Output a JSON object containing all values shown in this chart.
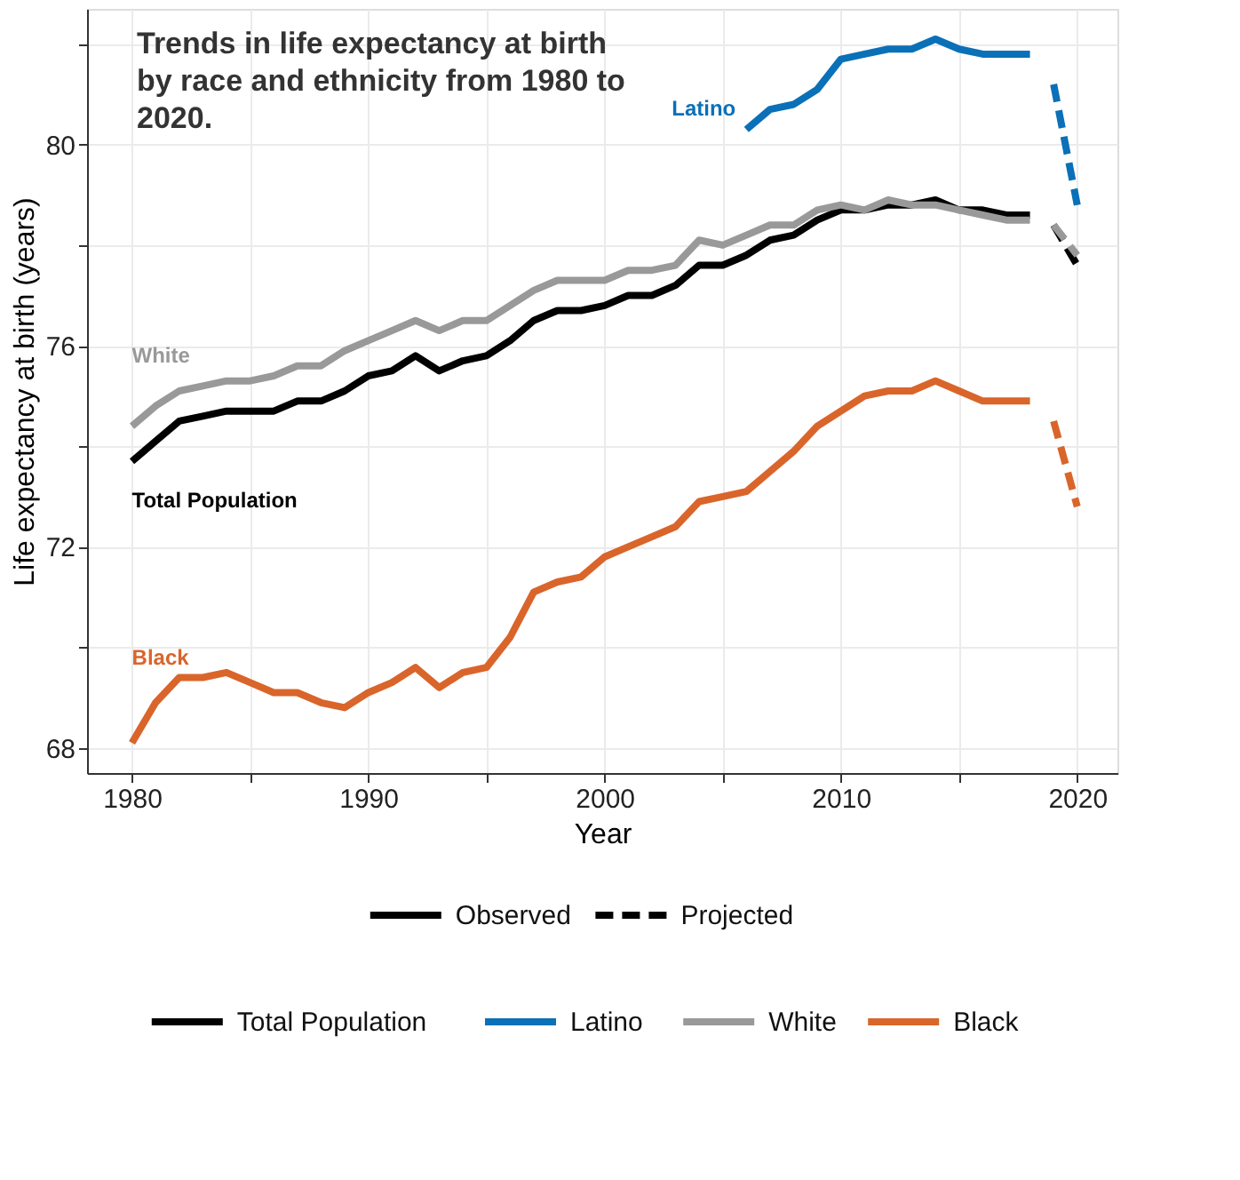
{
  "chart_data": {
    "type": "line",
    "title": "Trends in life expectancy at birth by race and ethnicity from 1980 to 2020.",
    "xlabel": "Year",
    "ylabel": "Life expectancy at birth (years)",
    "xlim": [
      1978.1,
      2021.7
    ],
    "ylim": [
      67.5,
      82.7
    ],
    "xticks": [
      1980,
      {
        "value": 1985,
        "label": null
      },
      1990,
      {
        "value": 1995,
        "label": null
      },
      2000,
      {
        "value": 2005,
        "label": null
      },
      2010,
      {
        "value": 2015,
        "label": null
      },
      2020
    ],
    "yticks": [
      68,
      {
        "value": 70,
        "label": null
      },
      72,
      {
        "value": 74,
        "label": null
      },
      76,
      {
        "value": 78,
        "label": null
      },
      80,
      {
        "value": 82,
        "label": null
      }
    ],
    "grid": true,
    "legend": "bottom",
    "annotations": [
      "Observed",
      "Projected"
    ],
    "series": [
      {
        "name": "Total Population",
        "color": "#000000",
        "line_style": "solid",
        "x": [
          1980,
          1981,
          1982,
          1983,
          1984,
          1985,
          1986,
          1987,
          1988,
          1989,
          1990,
          1991,
          1992,
          1993,
          1994,
          1995,
          1996,
          1997,
          1998,
          1999,
          2000,
          2001,
          2002,
          2003,
          2004,
          2005,
          2006,
          2007,
          2008,
          2009,
          2010,
          2011,
          2012,
          2013,
          2014,
          2015,
          2016,
          2017,
          2018
        ],
        "values": [
          73.7,
          74.1,
          74.5,
          74.6,
          74.7,
          74.7,
          74.7,
          74.9,
          74.9,
          75.1,
          75.4,
          75.5,
          75.8,
          75.5,
          75.7,
          75.8,
          76.1,
          76.5,
          76.7,
          76.7,
          76.8,
          77.0,
          77.0,
          77.2,
          77.6,
          77.6,
          77.8,
          78.1,
          78.2,
          78.5,
          78.7,
          78.7,
          78.8,
          78.8,
          78.9,
          78.7,
          78.7,
          78.6,
          78.6
        ]
      },
      {
        "name": "Latino",
        "color": "#0a70b8",
        "line_style": "solid",
        "x": [
          2006,
          2007,
          2008,
          2009,
          2010,
          2011,
          2012,
          2013,
          2014,
          2015,
          2016,
          2017,
          2018
        ],
        "values": [
          80.3,
          80.7,
          80.8,
          81.1,
          81.7,
          81.8,
          81.9,
          81.9,
          82.1,
          81.9,
          81.8,
          81.8,
          81.8
        ]
      },
      {
        "name": "White",
        "color": "#999999",
        "line_style": "solid",
        "x": [
          1980,
          1981,
          1982,
          1983,
          1984,
          1985,
          1986,
          1987,
          1988,
          1989,
          1990,
          1991,
          1992,
          1993,
          1994,
          1995,
          1996,
          1997,
          1998,
          1999,
          2000,
          2001,
          2002,
          2003,
          2004,
          2005,
          2006,
          2007,
          2008,
          2009,
          2010,
          2011,
          2012,
          2013,
          2014,
          2015,
          2016,
          2017,
          2018
        ],
        "values": [
          74.4,
          74.8,
          75.1,
          75.2,
          75.3,
          75.3,
          75.4,
          75.6,
          75.6,
          75.9,
          76.1,
          76.3,
          76.5,
          76.3,
          76.5,
          76.5,
          76.8,
          77.1,
          77.3,
          77.3,
          77.3,
          77.5,
          77.5,
          77.6,
          78.1,
          78.0,
          78.2,
          78.4,
          78.4,
          78.7,
          78.8,
          78.7,
          78.9,
          78.8,
          78.8,
          78.7,
          78.6,
          78.5,
          78.5
        ]
      },
      {
        "name": "Black",
        "color": "#d9652b",
        "line_style": "solid",
        "x": [
          1980,
          1981,
          1982,
          1983,
          1984,
          1985,
          1986,
          1987,
          1988,
          1989,
          1990,
          1991,
          1992,
          1993,
          1994,
          1995,
          1996,
          1997,
          1998,
          1999,
          2000,
          2001,
          2002,
          2003,
          2004,
          2005,
          2006,
          2007,
          2008,
          2009,
          2010,
          2011,
          2012,
          2013,
          2014,
          2015,
          2016,
          2017,
          2018
        ],
        "values": [
          68.1,
          68.9,
          69.4,
          69.4,
          69.5,
          69.3,
          69.1,
          69.1,
          68.9,
          68.8,
          69.1,
          69.3,
          69.6,
          69.2,
          69.5,
          69.6,
          70.2,
          71.1,
          71.3,
          71.4,
          71.8,
          72.0,
          72.2,
          72.4,
          72.9,
          73.0,
          73.1,
          73.5,
          73.9,
          74.4,
          74.7,
          75.0,
          75.1,
          75.1,
          75.3,
          75.1,
          74.9,
          74.9,
          74.9
        ]
      },
      {
        "color": "#000000",
        "line_style": "dashed",
        "x": [
          2019,
          2020
        ],
        "values": [
          78.4,
          77.6
        ]
      },
      {
        "color": "#0a70b8",
        "line_style": "dashed",
        "x": [
          2019,
          2020
        ],
        "values": [
          81.2,
          78.8
        ]
      },
      {
        "color": "#999999",
        "line_style": "dashed",
        "x": [
          2019,
          2020
        ],
        "values": [
          78.4,
          77.8
        ]
      },
      {
        "color": "#d9652b",
        "line_style": "dashed",
        "x": [
          2019,
          2020
        ],
        "values": [
          74.5,
          72.8
        ]
      }
    ]
  }
}
